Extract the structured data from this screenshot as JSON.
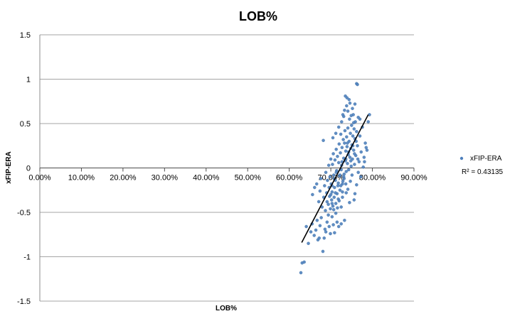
{
  "chart_data": {
    "type": "scatter",
    "title": "LOB%",
    "xlabel": "LOB%",
    "ylabel": "xFIP-ERA",
    "xlim": [
      0,
      0.9
    ],
    "ylim": [
      -1.5,
      1.5
    ],
    "x_ticks": [
      "0.00%",
      "10.00%",
      "20.00%",
      "30.00%",
      "40.00%",
      "50.00%",
      "60.00%",
      "70.00%",
      "80.00%",
      "90.00%"
    ],
    "y_ticks": [
      "1.5",
      "1",
      "0.5",
      "0",
      "-0.5",
      "-1",
      "-1.5"
    ],
    "grid": "horizontal",
    "legend_position": "right",
    "series": [
      {
        "name": "xFIP-ERA",
        "color": "#4f81bd",
        "points": [
          [
            0.628,
            -1.18
          ],
          [
            0.631,
            -1.07
          ],
          [
            0.636,
            -1.06
          ],
          [
            0.646,
            -0.85
          ],
          [
            0.641,
            -0.66
          ],
          [
            0.652,
            -0.72
          ],
          [
            0.655,
            -0.63
          ],
          [
            0.66,
            -0.76
          ],
          [
            0.664,
            -0.7
          ],
          [
            0.667,
            -0.59
          ],
          [
            0.669,
            -0.81
          ],
          [
            0.672,
            -0.79
          ],
          [
            0.674,
            -0.65
          ],
          [
            0.677,
            -0.56
          ],
          [
            0.681,
            -0.94
          ],
          [
            0.684,
            -0.79
          ],
          [
            0.686,
            -0.69
          ],
          [
            0.688,
            -0.72
          ],
          [
            0.691,
            -0.61
          ],
          [
            0.694,
            -0.53
          ],
          [
            0.696,
            -0.66
          ],
          [
            0.699,
            -0.74
          ],
          [
            0.703,
            -0.55
          ],
          [
            0.706,
            -0.64
          ],
          [
            0.709,
            -0.73
          ],
          [
            0.712,
            -0.51
          ],
          [
            0.715,
            -0.61
          ],
          [
            0.719,
            -0.66
          ],
          [
            0.725,
            -0.63
          ],
          [
            0.733,
            -0.59
          ],
          [
            0.656,
            -0.3
          ],
          [
            0.661,
            -0.22
          ],
          [
            0.666,
            -0.18
          ],
          [
            0.671,
            -0.38
          ],
          [
            0.674,
            -0.26
          ],
          [
            0.676,
            -0.12
          ],
          [
            0.679,
            -0.44
          ],
          [
            0.682,
            0.31
          ],
          [
            0.683,
            -0.33
          ],
          [
            0.685,
            -0.2
          ],
          [
            0.687,
            -0.48
          ],
          [
            0.688,
            -0.05
          ],
          [
            0.69,
            -0.28
          ],
          [
            0.691,
            -0.38
          ],
          [
            0.692,
            -0.14
          ],
          [
            0.694,
            -0.41
          ],
          [
            0.695,
            0.03
          ],
          [
            0.696,
            -0.22
          ],
          [
            0.697,
            -0.32
          ],
          [
            0.698,
            -0.1
          ],
          [
            0.699,
            -0.46
          ],
          [
            0.7,
            0.1
          ],
          [
            0.701,
            -0.18
          ],
          [
            0.702,
            -0.36
          ],
          [
            0.703,
            -0.27
          ],
          [
            0.704,
            0.04
          ],
          [
            0.705,
            -0.43
          ],
          [
            0.706,
            0.16
          ],
          [
            0.707,
            -0.08
          ],
          [
            0.708,
            -0.33
          ],
          [
            0.709,
            -0.22
          ],
          [
            0.71,
            0.09
          ],
          [
            0.711,
            -0.14
          ],
          [
            0.712,
            -0.4
          ],
          [
            0.713,
            0.21
          ],
          [
            0.714,
            -0.03
          ],
          [
            0.715,
            -0.29
          ],
          [
            0.716,
            0.13
          ],
          [
            0.717,
            -0.2
          ],
          [
            0.718,
            -0.35
          ],
          [
            0.719,
            0.06
          ],
          [
            0.72,
            0.27
          ],
          [
            0.721,
            -0.09
          ],
          [
            0.722,
            -0.25
          ],
          [
            0.723,
            0.17
          ],
          [
            0.724,
            0.38
          ],
          [
            0.725,
            -0.02
          ],
          [
            0.726,
            0.03
          ],
          [
            0.727,
            0.23
          ],
          [
            0.728,
            -0.18
          ],
          [
            0.729,
            -0.15
          ],
          [
            0.73,
            0.32
          ],
          [
            0.731,
            0.11
          ],
          [
            0.732,
            -0.07
          ],
          [
            0.733,
            0.28
          ],
          [
            0.734,
            0.42
          ],
          [
            0.735,
            0.08
          ],
          [
            0.736,
            0.19
          ],
          [
            0.737,
            -0.04
          ],
          [
            0.738,
            0.35
          ],
          [
            0.739,
            0.24
          ],
          [
            0.74,
            0.05
          ],
          [
            0.741,
            0.45
          ],
          [
            0.742,
            0.15
          ],
          [
            0.743,
            -0.02
          ],
          [
            0.744,
            0.3
          ],
          [
            0.745,
            0.55
          ],
          [
            0.746,
            0.12
          ],
          [
            0.747,
            0.39
          ],
          [
            0.748,
            0.22
          ],
          [
            0.749,
            0.02
          ],
          [
            0.75,
            0.48
          ],
          [
            0.751,
            0.26
          ],
          [
            0.752,
            0.1
          ],
          [
            0.753,
            0.36
          ],
          [
            0.754,
            0.6
          ],
          [
            0.755,
            0.2
          ],
          [
            0.756,
            0.44
          ],
          [
            0.757,
            0.04
          ],
          [
            0.758,
            0.33
          ],
          [
            0.759,
            0.52
          ],
          [
            0.76,
            0.14
          ],
          [
            0.762,
            0.41
          ],
          [
            0.764,
            0.25
          ],
          [
            0.766,
            0.57
          ],
          [
            0.768,
            0.07
          ],
          [
            0.77,
            0.36
          ],
          [
            0.773,
            0.18
          ],
          [
            0.776,
            0.46
          ],
          [
            0.78,
            0.12
          ],
          [
            0.783,
            0.28
          ],
          [
            0.787,
            0.2
          ],
          [
            0.79,
            0.52
          ],
          [
            0.793,
            0.6
          ],
          [
            0.705,
            0.34
          ],
          [
            0.712,
            0.39
          ],
          [
            0.719,
            0.46
          ],
          [
            0.726,
            0.52
          ],
          [
            0.731,
            0.58
          ],
          [
            0.733,
            0.65
          ],
          [
            0.738,
            0.7
          ],
          [
            0.741,
            0.64
          ],
          [
            0.744,
            0.77
          ],
          [
            0.746,
            0.73
          ],
          [
            0.749,
            0.59
          ],
          [
            0.752,
            0.67
          ],
          [
            0.758,
            0.72
          ],
          [
            0.762,
            0.95
          ],
          [
            0.764,
            0.94
          ],
          [
            0.735,
            0.81
          ],
          [
            0.739,
            0.79
          ],
          [
            0.729,
            0.6
          ],
          [
            0.755,
            0.51
          ],
          [
            0.77,
            0.55
          ],
          [
            0.747,
            -0.15
          ],
          [
            0.751,
            -0.08
          ],
          [
            0.741,
            -0.24
          ],
          [
            0.762,
            -0.19
          ],
          [
            0.756,
            -0.36
          ],
          [
            0.766,
            -0.05
          ],
          [
            0.772,
            -0.1
          ],
          [
            0.737,
            -0.28
          ],
          [
            0.728,
            -0.33
          ],
          [
            0.725,
            -0.44
          ],
          [
            0.778,
            0.01
          ],
          [
            0.781,
            0.07
          ],
          [
            0.785,
            0.23
          ],
          [
            0.758,
            -0.29
          ],
          [
            0.745,
            -0.39
          ],
          [
            0.703,
            -0.2
          ],
          [
            0.708,
            -0.12
          ],
          [
            0.713,
            -0.05
          ],
          [
            0.718,
            -0.17
          ],
          [
            0.722,
            -0.08
          ],
          [
            0.727,
            0.07
          ],
          [
            0.731,
            -0.1
          ],
          [
            0.736,
            0.1
          ],
          [
            0.74,
            0.28
          ],
          [
            0.743,
            0.18
          ],
          [
            0.748,
            0.08
          ],
          [
            0.753,
            0.25
          ],
          [
            0.757,
            0.16
          ],
          [
            0.761,
            0.3
          ],
          [
            0.765,
            0.1
          ],
          [
            0.7,
            -0.3
          ],
          [
            0.703,
            -0.4
          ],
          [
            0.707,
            -0.47
          ],
          [
            0.711,
            -0.28
          ],
          [
            0.716,
            -0.45
          ],
          [
            0.72,
            -0.37
          ],
          [
            0.724,
            -0.2
          ],
          [
            0.728,
            -0.27
          ],
          [
            0.732,
            -0.12
          ],
          [
            0.736,
            -0.18
          ]
        ]
      }
    ],
    "trendline": {
      "x": [
        0.63,
        0.79
      ],
      "y": [
        -0.84,
        0.6
      ],
      "color": "#000000"
    },
    "annotations": [
      "R² = 0.43135"
    ]
  }
}
